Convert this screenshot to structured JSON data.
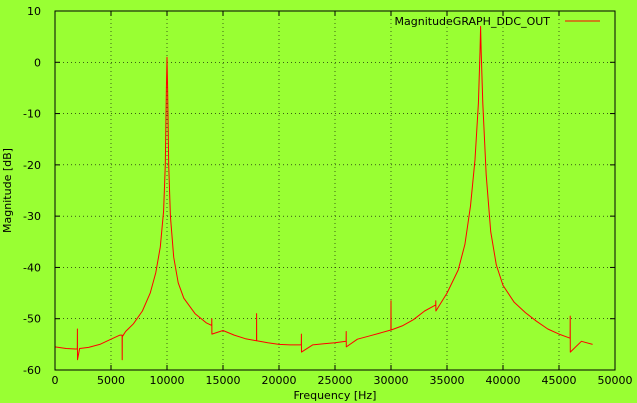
{
  "colors": {
    "background": "#99ff33",
    "series": "#ff0000",
    "grid": "#000000",
    "axis": "#000000"
  },
  "chart_data": {
    "type": "line",
    "title": "",
    "xlabel": "Frequency [Hz]",
    "ylabel": "Magnitude [dB]",
    "xlim": [
      0,
      50000
    ],
    "ylim": [
      -60,
      10
    ],
    "xticks": [
      0,
      5000,
      10000,
      15000,
      20000,
      25000,
      30000,
      35000,
      40000,
      45000,
      50000
    ],
    "yticks": [
      -60,
      -50,
      -40,
      -30,
      -20,
      -10,
      0,
      10
    ],
    "grid": true,
    "legend_position": "top-right",
    "series": [
      {
        "name": "MagnitudeGRAPH_DDC_OUT",
        "color": "#ff0000",
        "x": [
          0,
          1000,
          1800,
          1990,
          2000,
          2010,
          2200,
          3000,
          4000,
          5000,
          5800,
          5990,
          6000,
          6010,
          6300,
          7000,
          7800,
          8500,
          9000,
          9400,
          9700,
          9850,
          9950,
          10000,
          10050,
          10150,
          10300,
          10600,
          11000,
          11500,
          12500,
          13500,
          13990,
          14000,
          14010,
          15000,
          16000,
          17000,
          17990,
          18000,
          18010,
          19000,
          20000,
          21000,
          21990,
          22000,
          22010,
          23000,
          24000,
          25000,
          25990,
          26000,
          26010,
          27000,
          28000,
          29000,
          29990,
          30000,
          30010,
          31000,
          32000,
          33000,
          33990,
          34000,
          34010,
          35000,
          36000,
          36600,
          37100,
          37500,
          37800,
          37950,
          38000,
          38050,
          38200,
          38500,
          38900,
          39400,
          40000,
          41000,
          42000,
          43000,
          44000,
          45000,
          45990,
          46000,
          46010,
          47000,
          48000
        ],
        "y": [
          -55.5,
          -55.8,
          -55.9,
          -55.9,
          -52.0,
          -58.0,
          -55.8,
          -55.6,
          -55.0,
          -54.0,
          -53.2,
          -53.2,
          -58.0,
          -53.5,
          -52.5,
          -51.0,
          -48.5,
          -45.0,
          -41.0,
          -36.0,
          -29.0,
          -20.0,
          -5.0,
          1.0,
          -5.0,
          -20.0,
          -30.0,
          -38.0,
          -43.0,
          -46.0,
          -49.0,
          -50.8,
          -51.3,
          -50.0,
          -53.0,
          -52.3,
          -53.2,
          -53.9,
          -54.3,
          -49.0,
          -54.3,
          -54.7,
          -55.0,
          -55.1,
          -55.1,
          -53.0,
          -56.5,
          -55.1,
          -54.9,
          -54.7,
          -54.4,
          -52.5,
          -55.5,
          -54.0,
          -53.4,
          -52.8,
          -52.2,
          -46.5,
          -52.2,
          -51.4,
          -50.2,
          -48.5,
          -47.3,
          -46.5,
          -48.5,
          -45.0,
          -40.5,
          -35.5,
          -28.0,
          -19.0,
          -8.0,
          2.0,
          7.0,
          2.0,
          -8.0,
          -22.0,
          -33.0,
          -39.5,
          -43.5,
          -46.8,
          -48.8,
          -50.5,
          -52.0,
          -53.0,
          -53.8,
          -49.5,
          -56.5,
          -54.4,
          -55.0
        ]
      }
    ]
  }
}
